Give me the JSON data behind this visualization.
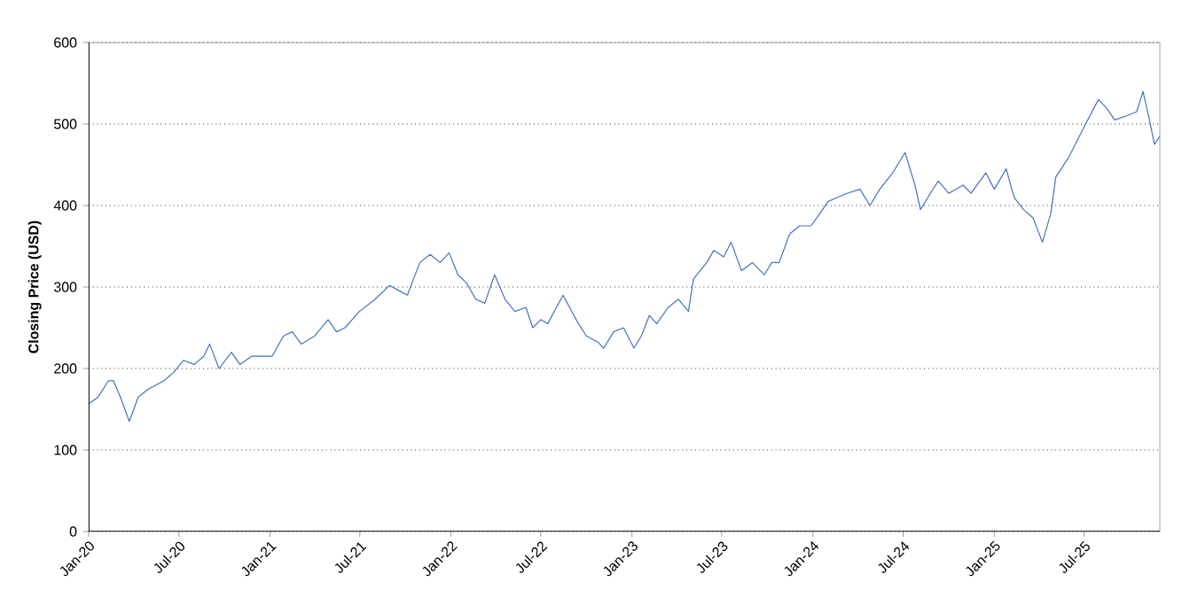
{
  "chart_data": {
    "type": "line",
    "ylabel": "**Closing Price (USD)**",
    "x": [
      "2020-01-02",
      "2020-01-20",
      "2020-02-10",
      "2020-02-20",
      "2020-03-05",
      "2020-03-20",
      "2020-03-23",
      "2020-04-10",
      "2020-05-01",
      "2020-06-01",
      "2020-06-20",
      "2020-07-10",
      "2020-08-01",
      "2020-08-20",
      "2020-09-01",
      "2020-09-20",
      "2020-10-15",
      "2020-11-01",
      "2020-11-25",
      "2020-12-15",
      "2021-01-05",
      "2021-01-28",
      "2021-02-15",
      "2021-03-05",
      "2021-04-01",
      "2021-04-28",
      "2021-05-15",
      "2021-06-01",
      "2021-06-30",
      "2021-08-01",
      "2021-08-30",
      "2021-09-20",
      "2021-10-05",
      "2021-10-30",
      "2021-11-20",
      "2021-12-10",
      "2021-12-28",
      "2022-01-15",
      "2022-02-01",
      "2022-02-20",
      "2022-03-10",
      "2022-03-30",
      "2022-04-20",
      "2022-05-10",
      "2022-06-01",
      "2022-06-15",
      "2022-07-01",
      "2022-07-15",
      "2022-08-15",
      "2022-09-15",
      "2022-10-01",
      "2022-10-25",
      "2022-11-05",
      "2022-11-25",
      "2022-12-15",
      "2023-01-05",
      "2023-01-20",
      "2023-02-05",
      "2023-02-20",
      "2023-03-15",
      "2023-04-05",
      "2023-04-25",
      "2023-05-05",
      "2023-06-01",
      "2023-06-15",
      "2023-07-05",
      "2023-07-20",
      "2023-08-10",
      "2023-09-01",
      "2023-09-25",
      "2023-10-10",
      "2023-10-25",
      "2023-11-15",
      "2023-12-05",
      "2023-12-28",
      "2024-01-15",
      "2024-02-01",
      "2024-02-20",
      "2024-03-10",
      "2024-04-05",
      "2024-04-25",
      "2024-05-15",
      "2024-06-10",
      "2024-07-05",
      "2024-07-25",
      "2024-08-05",
      "2024-08-25",
      "2024-09-10",
      "2024-10-01",
      "2024-10-30",
      "2024-11-15",
      "2024-12-15",
      "2025-01-01",
      "2025-01-25",
      "2025-02-10",
      "2025-03-01",
      "2025-03-20",
      "2025-04-08",
      "2025-04-25",
      "2025-05-05",
      "2025-06-01",
      "2025-06-30",
      "2025-07-30",
      "2025-08-15",
      "2025-09-01",
      "2025-09-25",
      "2025-10-15",
      "2025-10-28",
      "2025-11-10",
      "2025-11-20",
      "2025-12-01"
    ],
    "series": [
      {
        "color": "#4472c4",
        "values": [
          157,
          165,
          185,
          185,
          165,
          140,
          135,
          165,
          175,
          185,
          195,
          210,
          205,
          215,
          230,
          200,
          220,
          205,
          215,
          215,
          215,
          240,
          245,
          230,
          240,
          260,
          245,
          250,
          270,
          285,
          302,
          295,
          290,
          330,
          340,
          330,
          342,
          315,
          305,
          285,
          280,
          315,
          285,
          270,
          275,
          250,
          260,
          255,
          290,
          255,
          240,
          232,
          225,
          245,
          250,
          225,
          240,
          265,
          255,
          275,
          285,
          270,
          310,
          330,
          345,
          337,
          355,
          320,
          330,
          315,
          330,
          330,
          365,
          375,
          375,
          390,
          405,
          410,
          415,
          420,
          400,
          420,
          440,
          465,
          425,
          395,
          415,
          430,
          415,
          425,
          415,
          440,
          420,
          445,
          410,
          395,
          385,
          355,
          390,
          435,
          460,
          495,
          530,
          520,
          505,
          510,
          515,
          540,
          505,
          475,
          485
        ]
      }
    ],
    "xlim": [
      "2020-01-01",
      "2025-12-01"
    ],
    "xticks": [
      {
        "value": "2020-01-01",
        "label": "Jan-20"
      },
      {
        "value": "2020-07-01",
        "label": "Jul-20"
      },
      {
        "value": "2021-01-01",
        "label": "Jan-21"
      },
      {
        "value": "2021-07-01",
        "label": "Jul-21"
      },
      {
        "value": "2022-01-01",
        "label": "Jan-22"
      },
      {
        "value": "2022-07-01",
        "label": "Jul-22"
      },
      {
        "value": "2023-01-01",
        "label": "Jan-23"
      },
      {
        "value": "2023-07-01",
        "label": "Jul-23"
      },
      {
        "value": "2024-01-01",
        "label": "Jan-24"
      },
      {
        "value": "2024-07-01",
        "label": "Jul-24"
      },
      {
        "value": "2025-01-01",
        "label": "Jan-25"
      },
      {
        "value": "2025-07-01",
        "label": "Jul-25"
      }
    ],
    "ylim": [
      0,
      600
    ],
    "yticks": [
      0,
      100,
      200,
      300,
      400,
      500,
      600
    ],
    "grid": "y",
    "marker": "none",
    "line_style": "solid"
  }
}
